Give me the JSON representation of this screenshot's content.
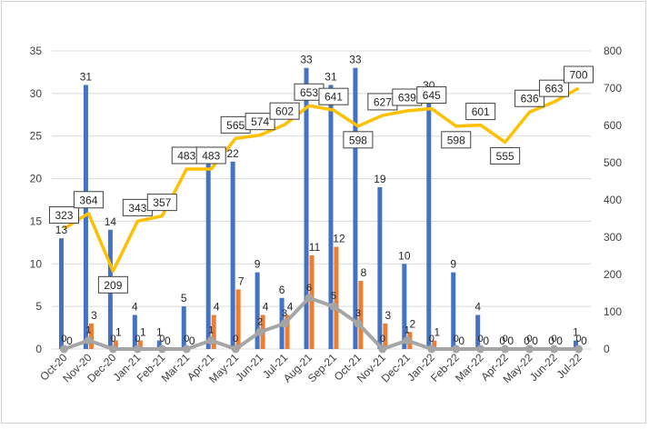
{
  "chart_data": {
    "type": "bar+line",
    "categories": [
      "Oct-20",
      "Nov-20",
      "Dec-20",
      "Jan-21",
      "Feb-21",
      "Mar-21",
      "Apr-21",
      "May-21",
      "Jun-21",
      "Jul-21",
      "Aug-21",
      "Sep-21",
      "Oct-21",
      "Nov-21",
      "Dec-21",
      "Jan-22",
      "Feb-22",
      "Mar-22",
      "Apr-22",
      "May-22",
      "Jun-22",
      "Jul-22"
    ],
    "y_left": {
      "min": 0,
      "max": 35,
      "ticks": [
        0,
        5,
        10,
        15,
        20,
        25,
        30,
        35
      ]
    },
    "y_right": {
      "min": 0,
      "max": 800,
      "ticks": [
        0,
        100,
        200,
        300,
        400,
        500,
        600,
        700,
        800
      ]
    },
    "series": [
      {
        "name": "Blue bars",
        "kind": "bar",
        "axis": "left",
        "color": "#4472C4",
        "values": [
          13,
          31,
          14,
          4,
          1,
          5,
          22,
          22,
          9,
          6,
          33,
          31,
          33,
          19,
          10,
          30,
          9,
          4,
          0,
          0,
          0,
          1
        ],
        "labels": [
          "13",
          "31",
          "14",
          "4",
          "1",
          "5",
          "22",
          "22",
          "9",
          "6",
          "33",
          "31",
          "33",
          "19",
          "10",
          "30",
          "9",
          "4",
          "0",
          "0",
          "0",
          "1"
        ]
      },
      {
        "name": "Orange bars",
        "kind": "bar",
        "axis": "left",
        "color": "#ED7D31",
        "values": [
          0,
          3,
          1,
          1,
          0,
          0,
          4,
          7,
          4,
          4,
          11,
          12,
          8,
          3,
          2,
          1,
          0,
          0,
          0,
          0,
          0,
          0
        ],
        "labels": [
          "0",
          "3",
          "1",
          "1",
          "0",
          "0",
          "4",
          "7",
          "4",
          "4",
          "11",
          "12",
          "8",
          "3",
          "2",
          "1",
          "0",
          "0",
          "0",
          "0",
          "0",
          "0"
        ]
      },
      {
        "name": "Gray line",
        "kind": "line",
        "axis": "left",
        "color": "#A5A5A5",
        "values": [
          0,
          1,
          0,
          0,
          0,
          0,
          1,
          0,
          2,
          3,
          6,
          5,
          3,
          0,
          1,
          0,
          0,
          0,
          0,
          0,
          0,
          0
        ],
        "labels": [
          "0",
          "1",
          "0",
          "0",
          "0",
          "0",
          "1",
          "0",
          "2",
          "3",
          "6",
          "5",
          "3",
          "0",
          "1",
          "0",
          "0",
          "0",
          "0",
          "0",
          "0",
          "0"
        ]
      },
      {
        "name": "Yellow line",
        "kind": "line",
        "axis": "right",
        "color": "#FFC000",
        "values": [
          323,
          364,
          209,
          343,
          357,
          483,
          483,
          565,
          574,
          602,
          653,
          641,
          598,
          627,
          639,
          645,
          598,
          601,
          555,
          636,
          663,
          700
        ],
        "labels": [
          "323",
          "364",
          "209",
          "343",
          "357",
          "483",
          "483",
          "565",
          "574",
          "602",
          "653",
          "641",
          "598",
          "627",
          "639",
          "645",
          "598",
          "601",
          "555",
          "636",
          "663",
          "700"
        ]
      }
    ]
  }
}
